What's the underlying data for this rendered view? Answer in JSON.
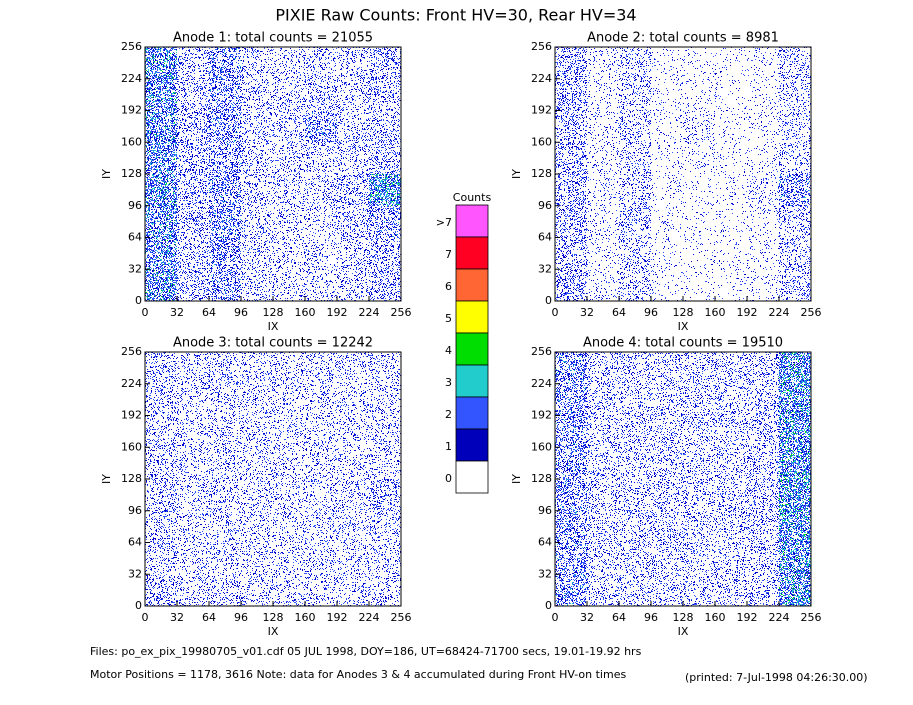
{
  "title": "PIXIE Raw Counts:  Front HV=30, Rear HV=34",
  "chart_data": [
    {
      "type": "heatmap",
      "title": "Anode 1: total counts = 21055",
      "xlabel": "IX",
      "ylabel": "IY",
      "xlim": [
        0,
        256
      ],
      "ylim": [
        0,
        256
      ],
      "xticks": [
        0,
        32,
        64,
        96,
        128,
        160,
        192,
        224,
        256
      ],
      "yticks": [
        0,
        32,
        64,
        96,
        128,
        160,
        192,
        224,
        256
      ],
      "z": [
        [
          750,
          280,
          420,
          200,
          170,
          170,
          200,
          300
        ],
        [
          650,
          250,
          450,
          200,
          170,
          170,
          200,
          300
        ],
        [
          700,
          280,
          500,
          200,
          170,
          170,
          250,
          400
        ],
        [
          750,
          280,
          450,
          200,
          200,
          200,
          300,
          900
        ],
        [
          650,
          280,
          380,
          200,
          200,
          200,
          200,
          280
        ],
        [
          700,
          280,
          450,
          200,
          200,
          420,
          200,
          250
        ],
        [
          700,
          250,
          420,
          200,
          200,
          250,
          200,
          250
        ],
        [
          750,
          250,
          450,
          200,
          170,
          200,
          200,
          320
        ]
      ]
    },
    {
      "type": "heatmap",
      "title": "Anode 2: total counts = 8981",
      "xlabel": "IX",
      "ylabel": "IY",
      "xlim": [
        0,
        256
      ],
      "ylim": [
        0,
        256
      ],
      "xticks": [
        0,
        32,
        64,
        96,
        128,
        160,
        192,
        224,
        256
      ],
      "yticks": [
        0,
        32,
        64,
        96,
        128,
        160,
        192,
        224,
        256
      ],
      "z": [
        [
          350,
          110,
          210,
          70,
          55,
          55,
          80,
          230
        ],
        [
          270,
          90,
          220,
          70,
          55,
          55,
          80,
          230
        ],
        [
          320,
          100,
          240,
          70,
          55,
          60,
          90,
          230
        ],
        [
          320,
          100,
          220,
          70,
          60,
          70,
          140,
          450
        ],
        [
          320,
          110,
          200,
          70,
          90,
          60,
          80,
          200
        ],
        [
          270,
          100,
          210,
          70,
          150,
          60,
          80,
          180
        ],
        [
          320,
          90,
          200,
          70,
          70,
          60,
          70,
          180
        ],
        [
          320,
          110,
          210,
          70,
          60,
          60,
          80,
          230
        ]
      ]
    },
    {
      "type": "heatmap",
      "title": "Anode 3: total counts = 12242",
      "xlabel": "IX",
      "ylabel": "IY",
      "xlim": [
        0,
        256
      ],
      "ylim": [
        0,
        256
      ],
      "xticks": [
        0,
        32,
        64,
        96,
        128,
        160,
        192,
        224,
        256
      ],
      "yticks": [
        0,
        32,
        64,
        96,
        128,
        160,
        192,
        224,
        256
      ],
      "z": [
        [
          300,
          200,
          220,
          190,
          180,
          190,
          180,
          190
        ],
        [
          220,
          180,
          190,
          180,
          170,
          180,
          170,
          190
        ],
        [
          230,
          180,
          190,
          180,
          170,
          180,
          170,
          200
        ],
        [
          240,
          180,
          200,
          180,
          170,
          180,
          200,
          300
        ],
        [
          230,
          180,
          190,
          180,
          170,
          180,
          170,
          190
        ],
        [
          230,
          180,
          190,
          180,
          170,
          180,
          170,
          190
        ],
        [
          230,
          180,
          190,
          180,
          170,
          180,
          170,
          190
        ],
        [
          260,
          200,
          220,
          190,
          180,
          190,
          180,
          200
        ]
      ]
    },
    {
      "type": "heatmap",
      "title": "Anode 4: total counts = 19510",
      "xlabel": "IX",
      "ylabel": "IY",
      "xlim": [
        0,
        256
      ],
      "ylim": [
        0,
        256
      ],
      "xticks": [
        0,
        32,
        64,
        96,
        128,
        160,
        192,
        224,
        256
      ],
      "yticks": [
        0,
        32,
        64,
        96,
        128,
        160,
        192,
        224,
        256
      ],
      "z": [
        [
          480,
          220,
          220,
          210,
          210,
          220,
          230,
          820
        ],
        [
          430,
          210,
          210,
          210,
          210,
          210,
          230,
          780
        ],
        [
          440,
          210,
          220,
          210,
          210,
          210,
          230,
          800
        ],
        [
          450,
          210,
          210,
          220,
          210,
          210,
          250,
          850
        ],
        [
          440,
          210,
          210,
          210,
          210,
          210,
          230,
          800
        ],
        [
          430,
          210,
          210,
          210,
          210,
          210,
          230,
          780
        ],
        [
          440,
          210,
          210,
          210,
          210,
          210,
          230,
          800
        ],
        [
          480,
          220,
          220,
          210,
          210,
          220,
          230,
          820
        ]
      ]
    }
  ],
  "colorbar": {
    "title": "Counts",
    "labels": [
      ">7",
      "7",
      "6",
      "5",
      "4",
      "3",
      "2",
      "1",
      "0"
    ],
    "colors": [
      "#ff55ff",
      "#ff0022",
      "#ff6633",
      "#ffff00",
      "#00dd00",
      "#22cccc",
      "#3355ff",
      "#0000bb",
      "#ffffff"
    ]
  },
  "footer": {
    "files": "Files: po_ex_pix_19980705_v01.cdf    05 JUL 1998, DOY=186, UT=68424-71700 secs, 19.01-19.92 hrs",
    "motor": "Motor Positions = 1178, 3616   Note: data for Anodes 3 & 4 accumulated during Front HV-on times",
    "printed": "(printed:  7-Jul-1998 04:26:30.00)"
  }
}
